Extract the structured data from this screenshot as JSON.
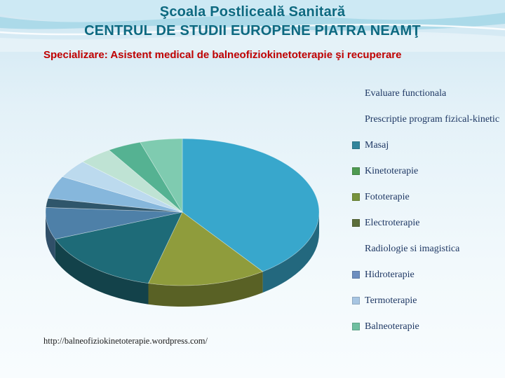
{
  "slide": {
    "title_line1": "Şcoala Postliceală Sanitară",
    "title_line2": "CENTRUL DE STUDII EUROPENE PIATRA NEAMŢ",
    "subtitle": "Specializare: Asistent medical de balneofiziokinetoterapie şi recuperare",
    "footer_url": "http://balneofiziokinetoterapie.wordpress.com/"
  },
  "colors": {
    "title": "#0d6980",
    "subtitle": "#c00000",
    "legend_text": "#1f3864"
  },
  "legend": {
    "items": [
      {
        "label": "Evaluare functionala",
        "marker": null
      },
      {
        "label": "Prescriptie program fizical-kinetic",
        "marker": null
      },
      {
        "label": "Masaj",
        "marker": "#31859c"
      },
      {
        "label": "Kinetoterapie",
        "marker": "#4e9a51"
      },
      {
        "label": "Fototerapie",
        "marker": "#77933c"
      },
      {
        "label": "Electroterapie",
        "marker": "#5b6e3a"
      },
      {
        "label": "Radiologie si imagistica",
        "marker": null
      },
      {
        "label": "Hidroterapie",
        "marker": "#6d8ebf"
      },
      {
        "label": "Termoterapie",
        "marker": "#a7c5e2"
      },
      {
        "label": "Balneoterapie",
        "marker": "#6fbfa0"
      }
    ]
  },
  "chart_data": {
    "type": "pie",
    "title": "",
    "labels": [
      "Evaluare functionala",
      "Prescriptie program fizical-kinetic",
      "Masaj",
      "Kinetoterapie",
      "Fototerapie",
      "Electroterapie",
      "Radiologie si imagistica",
      "Hidroterapie",
      "Termoterapie",
      "Balneoterapie"
    ],
    "values": [
      40,
      14,
      15,
      7,
      2,
      5,
      4,
      4,
      4,
      5
    ],
    "colors": [
      "#38a7cc",
      "#8f9c3c",
      "#1e6b78",
      "#4e80a8",
      "#2f566b",
      "#86b7dc",
      "#bcdaee",
      "#bfe3d4",
      "#55b292",
      "#7fcbb0"
    ],
    "legend_position": "right",
    "style_3d": true,
    "start_angle_deg": 0
  }
}
